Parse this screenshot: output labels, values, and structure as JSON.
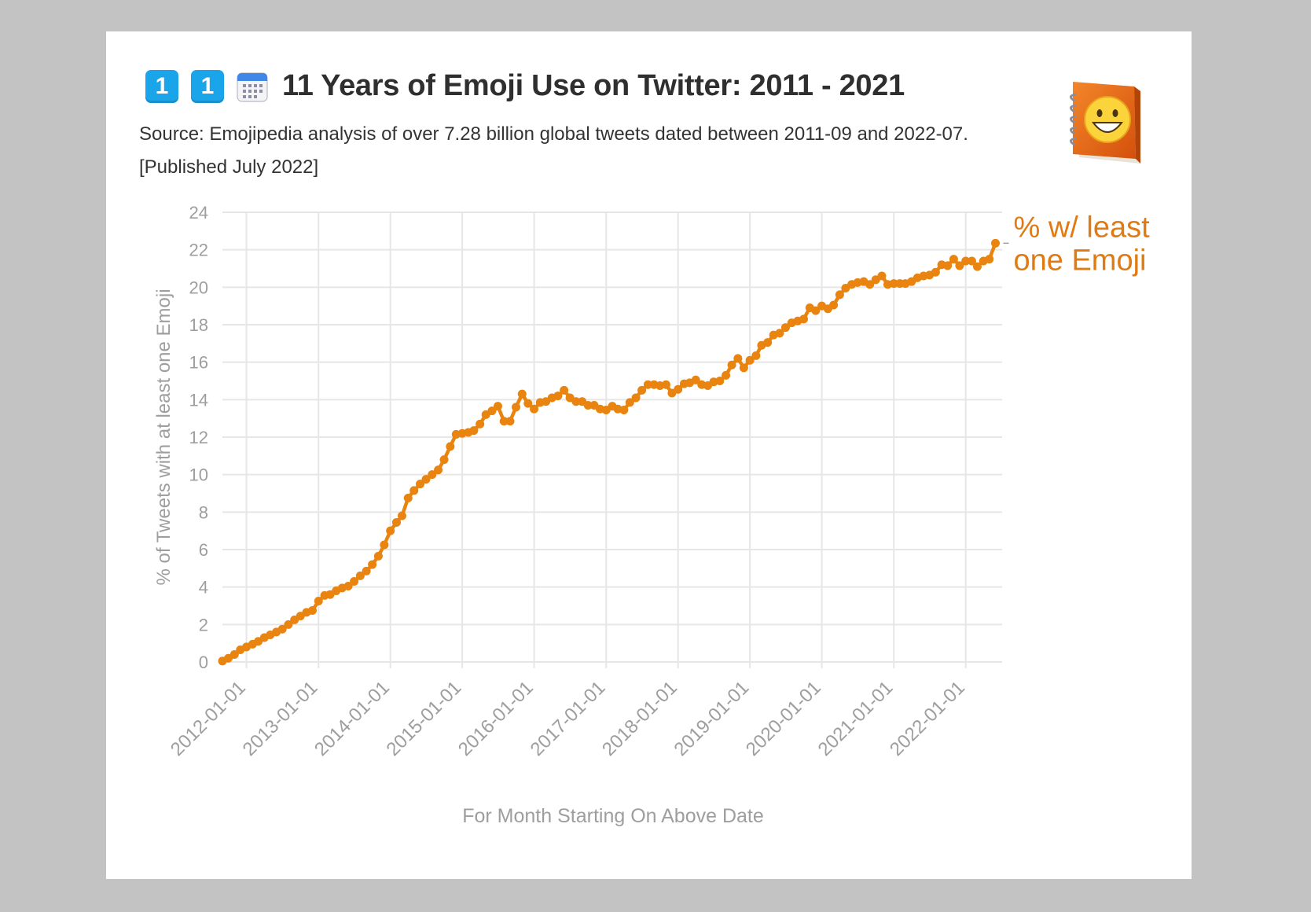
{
  "header": {
    "icons": [
      "keycap-digit-one",
      "keycap-digit-one",
      "calendar-icon",
      "emojipedia-book-logo"
    ],
    "keycap_1": "1",
    "keycap_2": "1",
    "title": "11 Years of Emoji Use on Twitter: 2011 - 2021",
    "subtitle_line1": "Source: Emojipedia analysis of over 7.28 billion global tweets dated between 2011-09 and 2022-07.",
    "subtitle_line2": "[Published July 2022]"
  },
  "colors": {
    "series": "#e8840f",
    "series_label": "#e07b14",
    "axis_text": "#9e9e9e",
    "grid": "#e6e6e6",
    "keycap": "#1aa5ea",
    "background": "#c3c3c3"
  },
  "chart_data": {
    "type": "line",
    "title": "11 Years of Emoji Use on Twitter: 2011 - 2021",
    "xlabel": "For Month Starting On Above Date",
    "ylabel": "% of Tweets with at least one Emoji",
    "ylim": [
      0,
      24
    ],
    "yticks": [
      0,
      2,
      4,
      6,
      8,
      10,
      12,
      14,
      16,
      18,
      20,
      22,
      24
    ],
    "xticks": [
      "2012-01-01",
      "2013-01-01",
      "2014-01-01",
      "2015-01-01",
      "2016-01-01",
      "2017-01-01",
      "2018-01-01",
      "2019-01-01",
      "2020-01-01",
      "2021-01-01",
      "2022-01-01"
    ],
    "x_start": "2011-09-01",
    "x_end": "2022-07-01",
    "grid": true,
    "legend": "none",
    "series": [
      {
        "name": "% w/ least one Emoji",
        "values": [
          0.05,
          0.2,
          0.4,
          0.65,
          0.8,
          0.95,
          1.1,
          1.3,
          1.45,
          1.6,
          1.75,
          2.0,
          2.25,
          2.45,
          2.65,
          2.75,
          3.25,
          3.55,
          3.6,
          3.8,
          3.95,
          4.05,
          4.3,
          4.6,
          4.85,
          5.2,
          5.65,
          6.25,
          7.0,
          7.45,
          7.8,
          8.75,
          9.15,
          9.5,
          9.75,
          10.0,
          10.25,
          10.8,
          11.5,
          12.15,
          12.2,
          12.25,
          12.35,
          12.7,
          13.2,
          13.4,
          13.65,
          12.85,
          12.85,
          13.6,
          14.3,
          13.8,
          13.5,
          13.85,
          13.9,
          14.1,
          14.2,
          14.5,
          14.1,
          13.9,
          13.9,
          13.7,
          13.7,
          13.5,
          13.45,
          13.65,
          13.5,
          13.45,
          13.85,
          14.1,
          14.5,
          14.8,
          14.8,
          14.75,
          14.8,
          14.35,
          14.55,
          14.85,
          14.9,
          15.05,
          14.8,
          14.75,
          14.95,
          15.0,
          15.3,
          15.85,
          16.2,
          15.7,
          16.1,
          16.35,
          16.9,
          17.05,
          17.45,
          17.55,
          17.85,
          18.1,
          18.2,
          18.3,
          18.9,
          18.75,
          19.0,
          18.85,
          19.05,
          19.6,
          19.95,
          20.15,
          20.25,
          20.3,
          20.15,
          20.4,
          20.6,
          20.15,
          20.2,
          20.2,
          20.2,
          20.3,
          20.5,
          20.6,
          20.65,
          20.8,
          21.2,
          21.15,
          21.5,
          21.15,
          21.4,
          21.4,
          21.1,
          21.4,
          21.5,
          22.35
        ]
      }
    ]
  }
}
